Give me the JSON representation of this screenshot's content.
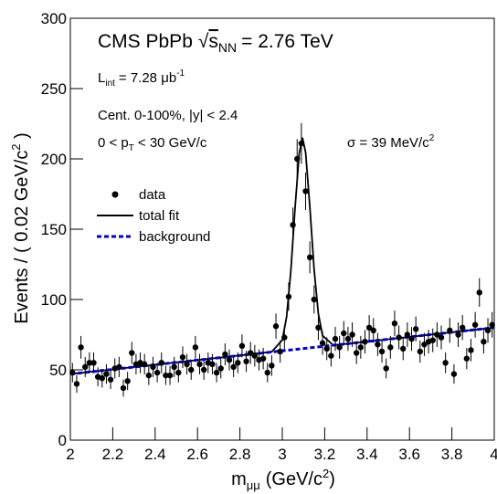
{
  "chart_data": {
    "type": "scatter",
    "header": {
      "experiment": "CMS PbPb",
      "sqrt_arg": "s",
      "sqrt_sub": "NN",
      "energy": "= 2.76 TeV"
    },
    "annotations": {
      "lumi": {
        "symbol": "L",
        "sub": "int",
        "text": "= 7.28 μb",
        "sup": "-1"
      },
      "centrality": "Cent. 0-100%, |y| < 2.4",
      "pt": {
        "pre": "0 < p",
        "sub": "T",
        "post": "< 30 GeV/c"
      },
      "sigma": {
        "text": "σ = 39 MeV/c",
        "sup": "2"
      }
    },
    "x_label": {
      "symbol": "m",
      "sub": "μμ",
      "text": "(GeV/c",
      "sup": "2",
      "close": ")"
    },
    "y_label": {
      "text": "Events / ( 0.02 GeV/c",
      "sup": "2",
      "close": " )"
    },
    "xlim": [
      2,
      4
    ],
    "ylim": [
      0,
      300
    ],
    "xticks": [
      2,
      2.2,
      2.4,
      2.6,
      2.8,
      3,
      3.2,
      3.4,
      3.6,
      3.8,
      4
    ],
    "yticks": [
      0,
      50,
      100,
      150,
      200,
      250,
      300
    ],
    "series": [
      {
        "name": "data",
        "color": "#000000",
        "x": [
          2.01,
          2.03,
          2.05,
          2.07,
          2.09,
          2.11,
          2.13,
          2.15,
          2.17,
          2.19,
          2.21,
          2.23,
          2.25,
          2.27,
          2.29,
          2.31,
          2.33,
          2.35,
          2.37,
          2.39,
          2.41,
          2.43,
          2.45,
          2.47,
          2.49,
          2.51,
          2.53,
          2.55,
          2.57,
          2.59,
          2.61,
          2.63,
          2.65,
          2.67,
          2.69,
          2.71,
          2.73,
          2.75,
          2.77,
          2.79,
          2.81,
          2.83,
          2.85,
          2.87,
          2.89,
          2.91,
          2.93,
          2.95,
          2.97,
          2.99,
          3.01,
          3.03,
          3.05,
          3.07,
          3.09,
          3.11,
          3.13,
          3.15,
          3.17,
          3.19,
          3.21,
          3.23,
          3.25,
          3.27,
          3.29,
          3.31,
          3.33,
          3.35,
          3.37,
          3.39,
          3.41,
          3.43,
          3.45,
          3.47,
          3.49,
          3.51,
          3.53,
          3.55,
          3.57,
          3.59,
          3.61,
          3.63,
          3.65,
          3.67,
          3.69,
          3.71,
          3.73,
          3.75,
          3.77,
          3.79,
          3.81,
          3.83,
          3.85,
          3.87,
          3.89,
          3.91,
          3.93,
          3.95,
          3.97,
          3.99
        ],
        "values": [
          48,
          40,
          66,
          52,
          55,
          55,
          45,
          44,
          47,
          43,
          51,
          52,
          37,
          42,
          62,
          54,
          55,
          54,
          46,
          52,
          48,
          55,
          46,
          46,
          52,
          48,
          59,
          54,
          50,
          66,
          54,
          50,
          55,
          54,
          48,
          51,
          61,
          57,
          52,
          55,
          67,
          56,
          62,
          60,
          57,
          58,
          48,
          53,
          81,
          63,
          73,
          102,
          153,
          200,
          211,
          177,
          130,
          100,
          80,
          69,
          65,
          60,
          72,
          66,
          76,
          72,
          75,
          62,
          66,
          70,
          80,
          78,
          68,
          63,
          51,
          66,
          83,
          73,
          65,
          75,
          72,
          79,
          63,
          68,
          70,
          71,
          75,
          73,
          55,
          78,
          47,
          75,
          80,
          58,
          64,
          82,
          105,
          70,
          78,
          82
        ],
        "errors": [
          6.9,
          6.3,
          8.1,
          7.2,
          7.4,
          7.4,
          6.7,
          6.6,
          6.9,
          6.6,
          7.1,
          7.2,
          6.1,
          6.5,
          7.9,
          7.3,
          7.4,
          7.3,
          6.8,
          7.2,
          6.9,
          7.4,
          6.8,
          6.8,
          7.2,
          6.9,
          7.7,
          7.3,
          7.1,
          8.1,
          7.3,
          7.1,
          7.4,
          7.3,
          6.9,
          7.1,
          7.8,
          7.5,
          7.2,
          7.4,
          8.2,
          7.5,
          7.9,
          7.7,
          7.5,
          7.6,
          6.9,
          7.3,
          9,
          7.9,
          8.5,
          10.1,
          12.4,
          14.1,
          14.5,
          13.3,
          11.4,
          10,
          8.9,
          8.3,
          8.1,
          7.7,
          8.5,
          8.1,
          8.7,
          8.5,
          8.7,
          7.9,
          8.1,
          8.4,
          8.9,
          8.8,
          8.2,
          7.9,
          7.1,
          8.1,
          9.1,
          8.5,
          8.1,
          8.7,
          8.5,
          8.9,
          7.9,
          8.2,
          8.4,
          8.4,
          8.7,
          8.5,
          7.4,
          8.8,
          6.9,
          8.7,
          8.9,
          7.6,
          8,
          9.1,
          10.2,
          8.4,
          8.8,
          9.1
        ]
      }
    ],
    "fit_curves": [
      {
        "name": "total fit",
        "color": "#000000",
        "dashed": false,
        "x": [
          2,
          2.9,
          2.95,
          3,
          3.02,
          3.04,
          3.06,
          3.08,
          3.095,
          3.11,
          3.13,
          3.15,
          3.17,
          3.19,
          3.24,
          3.3,
          4
        ],
        "values": [
          47,
          61.9,
          62.8,
          71.2,
          87.4,
          119.7,
          164.8,
          204.1,
          215.1,
          204.6,
          165.9,
          121.5,
          89.9,
          74.3,
          67.6,
          68.4,
          80
        ]
      },
      {
        "name": "background",
        "color": "#0000cc",
        "dashed": true,
        "x": [
          2,
          4
        ],
        "values": [
          47,
          80
        ]
      }
    ]
  }
}
